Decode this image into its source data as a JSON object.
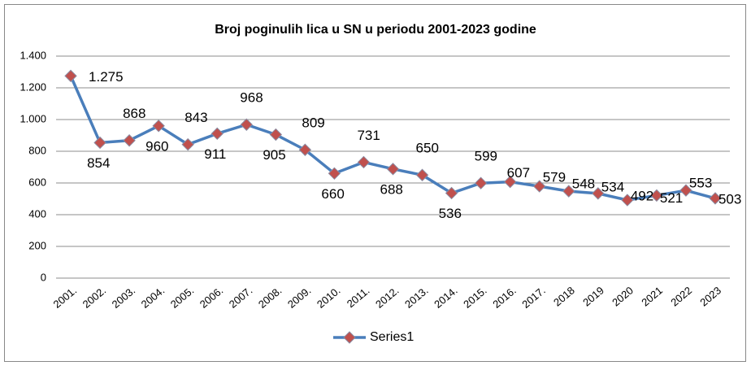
{
  "chart_data": {
    "type": "line",
    "title": "Broj poginulih lica u SN u periodu 2001-2023 godine",
    "categories": [
      "2001.",
      "2002.",
      "2003.",
      "2004.",
      "2005.",
      "2006.",
      "2007.",
      "2008.",
      "2009.",
      "2010.",
      "2011.",
      "2012.",
      "2013.",
      "2014.",
      "2015.",
      "2016.",
      "2017.",
      "2018",
      "2019",
      "2020",
      "2021",
      "2022",
      "2023"
    ],
    "series": [
      {
        "name": "Series1",
        "color": "#4a7ebb",
        "marker_color": "#c0504d",
        "values": [
          1275,
          854,
          868,
          960,
          843,
          911,
          968,
          905,
          809,
          660,
          731,
          688,
          650,
          536,
          599,
          607,
          579,
          548,
          534,
          492,
          521,
          553,
          503
        ],
        "value_labels": [
          "1.275",
          "854",
          "868",
          "960",
          "843",
          "911",
          "968",
          "905",
          "809",
          "660",
          "731",
          "688",
          "650",
          "536",
          "599",
          "607",
          "579",
          "548",
          "534",
          "492",
          "521",
          "553",
          "503"
        ]
      }
    ],
    "ylim": [
      0,
      1400
    ],
    "yticks": [
      0,
      200,
      400,
      600,
      800,
      {
        "value": 1000,
        "label": "1.000"
      },
      {
        "value": 1200,
        "label": "1.200"
      },
      {
        "value": 1400,
        "label": "1.400"
      }
    ],
    "grid": true,
    "legend": "bottom"
  }
}
